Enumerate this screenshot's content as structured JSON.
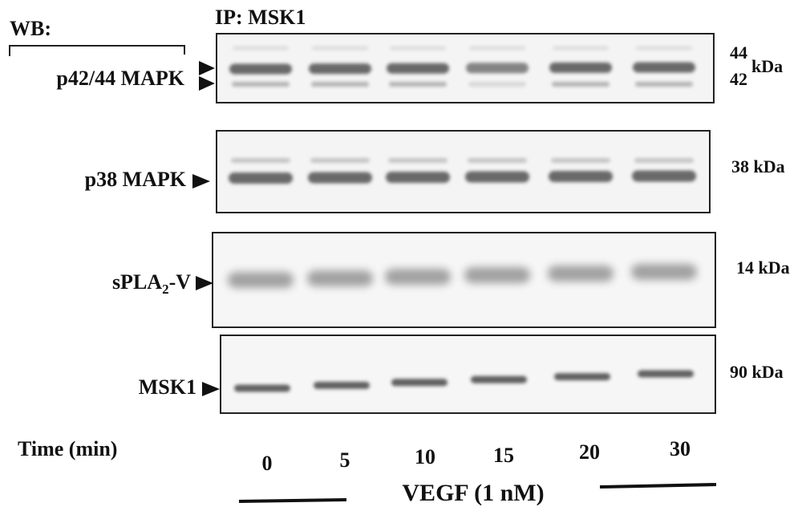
{
  "header": {
    "wb": "WB:",
    "ip": "IP: MSK1"
  },
  "panels": [
    {
      "label": "p42/44 MAPK",
      "markers": [
        "44",
        "42"
      ],
      "unit": "kDa"
    },
    {
      "label": "p38 MAPK",
      "marker": "38 kDa"
    },
    {
      "label_parts": [
        "sPLA",
        "2",
        "-V"
      ],
      "marker": "14 kDa"
    },
    {
      "label": "MSK1",
      "marker": "90 kDa"
    }
  ],
  "time_label": "Time (min)",
  "lanes": [
    "0",
    "5",
    "10",
    "15",
    "20",
    "30"
  ],
  "treatment": "VEGF (1 nM)"
}
